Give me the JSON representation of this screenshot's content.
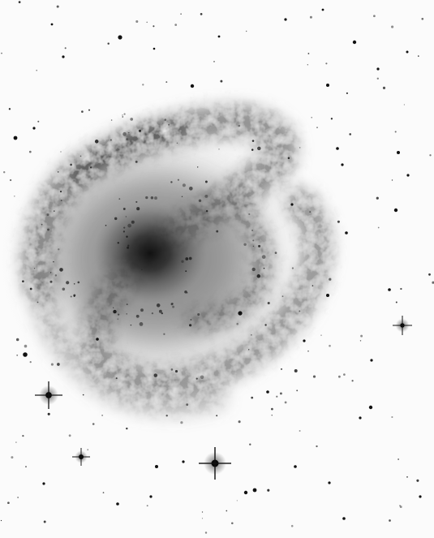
{
  "image": {
    "kind": "photograph",
    "subject": "spiral-galaxy",
    "rendering": "inverted-grayscale",
    "colors": {
      "background": "#fbfbfb",
      "galaxy_core": "#1c1c1c",
      "spiral_arms": "#4a4a4a",
      "stars": "#111111"
    }
  }
}
